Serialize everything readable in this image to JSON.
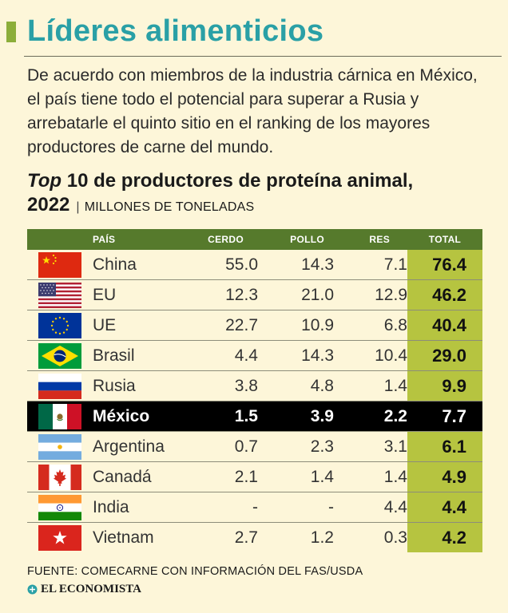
{
  "header": {
    "title": "Líderes alimenticios",
    "intro": "De acuerdo con miembros de la industria cárnica en México, el país tiene todo el potencial para superar a Rusia y arrebatarle el quinto sitio en el ranking de los mayores productores de carne del mundo."
  },
  "subtitle": {
    "top_word": "Top",
    "rest": " 10 de productores de proteína animal,",
    "year": "2022",
    "unit": "MILLONES DE TONELADAS"
  },
  "table": {
    "headers": [
      "PAÍS",
      "CERDO",
      "POLLO",
      "RES",
      "TOTAL"
    ],
    "rows": [
      {
        "country": "China",
        "flag": "china-flag-icon",
        "cerdo": "55.0",
        "pollo": "14.3",
        "res": "7.1",
        "total": "76.4"
      },
      {
        "country": "EU",
        "flag": "usa-flag-icon",
        "cerdo": "12.3",
        "pollo": "21.0",
        "res": "12.9",
        "total": "46.2"
      },
      {
        "country": "UE",
        "flag": "eu-flag-icon",
        "cerdo": "22.7",
        "pollo": "10.9",
        "res": "6.8",
        "total": "40.4"
      },
      {
        "country": "Brasil",
        "flag": "brazil-flag-icon",
        "cerdo": "4.4",
        "pollo": "14.3",
        "res": "10.4",
        "total": "29.0"
      },
      {
        "country": "Rusia",
        "flag": "russia-flag-icon",
        "cerdo": "3.8",
        "pollo": "4.8",
        "res": "1.4",
        "total": "9.9"
      },
      {
        "country": "México",
        "flag": "mexico-flag-icon",
        "cerdo": "1.5",
        "pollo": "3.9",
        "res": "2.2",
        "total": "7.7"
      },
      {
        "country": "Argentina",
        "flag": "argentina-flag-icon",
        "cerdo": "0.7",
        "pollo": "2.3",
        "res": "3.1",
        "total": "6.1"
      },
      {
        "country": "Canadá",
        "flag": "canada-flag-icon",
        "cerdo": "2.1",
        "pollo": "1.4",
        "res": "1.4",
        "total": "4.9"
      },
      {
        "country": "India",
        "flag": "india-flag-icon",
        "cerdo": "-",
        "pollo": "-",
        "res": "4.4",
        "total": "4.4"
      },
      {
        "country": "Vietnam",
        "flag": "vietnam-flag-icon",
        "cerdo": "2.7",
        "pollo": "1.2",
        "res": "0.3",
        "total": "4.2"
      }
    ]
  },
  "footer": {
    "source": "FUENTE: COMECARNE CON INFORMACIÓN DEL FAS/USDA",
    "brand": "EL ECONOMISTA"
  },
  "colors": {
    "title": "#2aa0a6",
    "accent_bar": "#8cae3a",
    "header_bg": "#567a2c",
    "total_bg": "#b6c440",
    "highlight_bg": "#000000",
    "page_bg": "#fdf6d9"
  }
}
